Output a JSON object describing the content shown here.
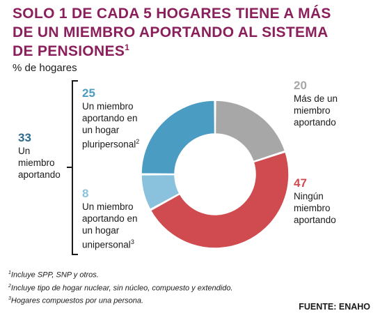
{
  "header": {
    "title_lines": [
      "SOLO 1 DE CADA 5 HOGARES TIENE A MÁS",
      "DE UN MIEMBRO APORTANDO AL SISTEMA",
      "DE PENSIONES"
    ],
    "title_sup": "1",
    "subtitle": "% de hogares"
  },
  "chart_data": {
    "type": "pie",
    "donut": true,
    "slices": [
      {
        "label": "Más de un miembro aportando",
        "value": 20,
        "color": "#a7a7a7"
      },
      {
        "label": "Ningún miembro aportando",
        "value": 47,
        "color": "#d04b4f"
      },
      {
        "label": "Un miembro aportando en un hogar unipersonal",
        "value": 8,
        "color": "#8ac2dd"
      },
      {
        "label": "Un miembro aportando en un hogar pluripersonal",
        "value": 25,
        "color": "#4a9cc2"
      }
    ],
    "group": {
      "label": "Un miembro aportando",
      "value": 33
    }
  },
  "labels": {
    "total": {
      "value": "33",
      "lines": [
        "Un",
        "miembro",
        "aportando"
      ]
    },
    "pluri": {
      "value": "25",
      "lines": [
        "Un miembro",
        "aportando en",
        "un hogar",
        "pluripersonal"
      ],
      "sup": "2"
    },
    "uni": {
      "value": "8",
      "lines": [
        "Un miembro",
        "aportando en",
        "un hogar",
        "unipersonal"
      ],
      "sup": "3"
    },
    "mas": {
      "value": "20",
      "lines": [
        "Más de un",
        "miembro",
        "aportando"
      ]
    },
    "ning": {
      "value": "47",
      "lines": [
        "Ningún",
        "miembro",
        "aportando"
      ]
    }
  },
  "footnotes": [
    {
      "sup": "1",
      "text": "Incluye SPP, SNP y otros."
    },
    {
      "sup": "2",
      "text": "Incluye tipo de hogar nuclear, sin núcleo, compuesto y extendido."
    },
    {
      "sup": "3",
      "text": "Hogares compuestos por una persona."
    }
  ],
  "source": "FUENTE: ENAHO"
}
